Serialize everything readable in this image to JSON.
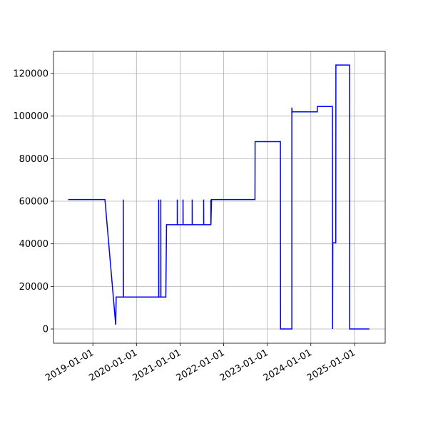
{
  "chart_data": {
    "type": "line",
    "x": [
      "2018-06-08",
      "2019-04-12",
      "2019-07-11",
      "2019-07-15",
      "2019-09-13",
      "2019-09-13",
      "2019-09-14",
      "2020-07-05",
      "2020-07-05",
      "2020-07-06",
      "2020-07-23",
      "2020-07-23",
      "2020-07-24",
      "2020-09-03",
      "2020-09-09",
      "2020-12-08",
      "2020-12-08",
      "2020-12-09",
      "2021-01-25",
      "2021-01-25",
      "2021-01-26",
      "2021-04-12",
      "2021-04-12",
      "2021-04-13",
      "2021-07-17",
      "2021-07-17",
      "2021-07-18",
      "2021-09-15",
      "2021-09-15",
      "2021-09-16",
      "2021-09-21",
      "2022-09-20",
      "2022-09-21",
      "2023-04-21",
      "2023-04-22",
      "2023-07-26",
      "2023-07-26",
      "2023-07-28",
      "2024-02-24",
      "2024-02-25",
      "2024-06-30",
      "2024-07-01",
      "2024-07-03",
      "2024-07-28",
      "2024-07-29",
      "2024-11-20",
      "2024-11-21",
      "2025-05-05"
    ],
    "series": [
      {
        "color": "#0000ff",
        "values": [
          60800,
          60800,
          2000,
          15000,
          15000,
          60800,
          15000,
          15000,
          60800,
          15000,
          15000,
          60800,
          15000,
          15000,
          49000,
          49000,
          60800,
          49000,
          49000,
          60800,
          49000,
          49000,
          60800,
          49000,
          49000,
          60800,
          49000,
          49000,
          60800,
          49000,
          60800,
          60800,
          88000,
          88000,
          0,
          0,
          104000,
          102000,
          102000,
          104500,
          104500,
          0,
          40500,
          40500,
          124000,
          124000,
          0,
          0
        ]
      }
    ],
    "xlim": [
      "2018-02-05",
      "2025-09-15"
    ],
    "xticks": [
      "2019-01-01",
      "2020-01-01",
      "2021-01-01",
      "2022-01-01",
      "2023-01-01",
      "2024-01-01",
      "2025-01-01"
    ],
    "ylim": [
      -6700,
      130400
    ],
    "yticks": [
      0,
      20000,
      40000,
      60000,
      80000,
      100000,
      120000
    ],
    "grid": true
  }
}
